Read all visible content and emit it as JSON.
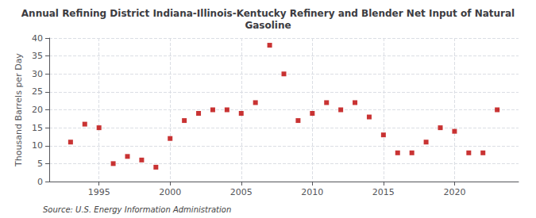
{
  "chart_data": {
    "type": "scatter",
    "title": "Annual Refining District Indiana-Illinois-Kentucky Refinery and Blender Net Input of Natural\nGasoline",
    "ylabel": "Thousand Barrels per Day",
    "annotations": [
      "Source: U.S. Energy Information Administration"
    ],
    "x": [
      1993,
      1994,
      1995,
      1996,
      1997,
      1998,
      1999,
      2000,
      2001,
      2002,
      2003,
      2004,
      2005,
      2006,
      2007,
      2008,
      2009,
      2010,
      2011,
      2012,
      2013,
      2014,
      2015,
      2016,
      2017,
      2018,
      2019,
      2020,
      2021,
      2022,
      2023
    ],
    "values": [
      11,
      16,
      15,
      5,
      7,
      6,
      4,
      12,
      17,
      19,
      20,
      20,
      19,
      22,
      38,
      30,
      17,
      19,
      22,
      20,
      22,
      18,
      13,
      8,
      8,
      11,
      15,
      14,
      8,
      8,
      20
    ],
    "color": "#bb0000",
    "marker": "square",
    "xlim": [
      1991.5,
      2024.5
    ],
    "xticks": [
      1995,
      2000,
      2005,
      2010,
      2015,
      2020
    ],
    "ylim": [
      0,
      40
    ],
    "yticks": [
      0,
      5,
      10,
      15,
      20,
      25,
      30,
      35,
      40
    ],
    "grid": true
  }
}
